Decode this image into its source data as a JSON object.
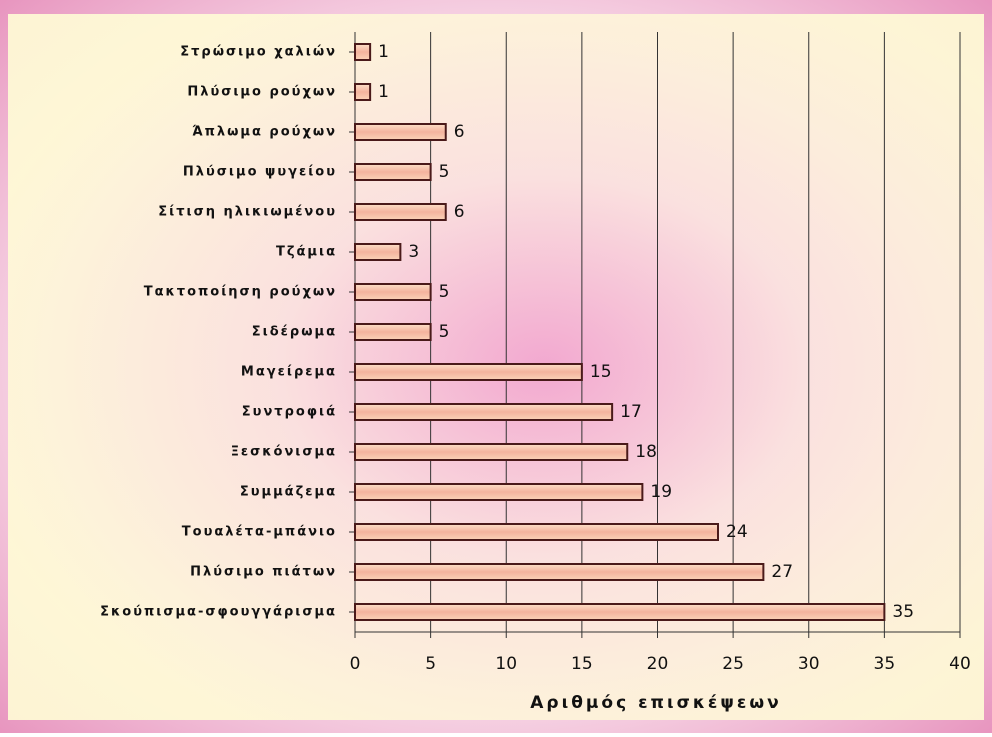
{
  "chart_data": {
    "type": "bar",
    "orientation": "horizontal",
    "categories": [
      "Στρώσιμο χαλιών",
      "Πλύσιμο ρούχων",
      "Άπλωμα ρούχων",
      "Πλύσιμο ψυγείου",
      "Σίτιση ηλικιωμένου",
      "Τζάμια",
      "Τακτοποίηση ρούχων",
      "Σιδέρωμα",
      "Μαγείρεμα",
      "Συντροφιά",
      "Ξεσκόνισμα",
      "Συμμάζεμα",
      "Τουαλέτα-μπάνιο",
      "Πλύσιμο πιάτων",
      "Σκούπισμα-σφουγγάρισμα"
    ],
    "values": [
      1,
      1,
      6,
      5,
      6,
      3,
      5,
      5,
      15,
      17,
      18,
      19,
      24,
      27,
      35
    ],
    "color": "#f7c4a8",
    "xlabel": "Αριθμός επισκέψεων",
    "xlim": [
      0,
      40
    ],
    "xticks": [
      0,
      5,
      10,
      15,
      20,
      25,
      30,
      35,
      40
    ],
    "grid": true
  }
}
